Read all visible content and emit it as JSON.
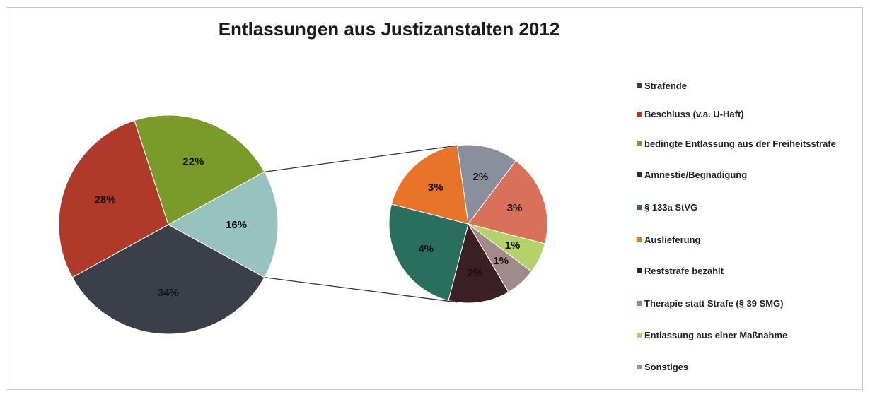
{
  "chart_data": {
    "type": "pie",
    "subtype": "pie-of-pie",
    "title": "Entlassungen aus Justizanstalten 2012",
    "legend_position": "right",
    "categories": [
      "Strafende",
      "Beschluss (v.a. U-Haft)",
      "bedingte Entlassung aus der Freiheitsstrafe",
      "Amnestie/Begnadigung",
      "§ 133a StVG",
      "Auslieferung",
      "Reststrafe bezahlt",
      "Therapie statt Strafe (§ 39 SMG)",
      "Entlassung aus einer Maßnahme",
      "Sonstiges"
    ],
    "main_pie": {
      "slices": [
        {
          "label": "34%",
          "value": 34,
          "color": "#3a3f4a"
        },
        {
          "label": "28%",
          "value": 28,
          "color": "#b03a2a"
        },
        {
          "label": "22%",
          "value": 22,
          "color": "#7a9a2a"
        },
        {
          "label": "16%",
          "value": 16,
          "color": "#97c2be"
        }
      ]
    },
    "secondary_pie": {
      "slices": [
        {
          "label": "2%",
          "value": 2,
          "color": "#8a8f9e"
        },
        {
          "label": "3%",
          "value": 3,
          "color": "#d9705a"
        },
        {
          "label": "1%",
          "value": 1,
          "color": "#b5d26a"
        },
        {
          "label": "1%",
          "value": 1,
          "color": "#a08a8a"
        },
        {
          "label": "2%",
          "value": 2,
          "color": "#3a1f24"
        },
        {
          "label": "4%",
          "value": 4,
          "color": "#2a6e5e"
        },
        {
          "label": "3%",
          "value": 3,
          "color": "#e8742a"
        }
      ]
    },
    "legend": [
      {
        "text": "Strafende",
        "color": "#3a3f4a"
      },
      {
        "text": "Beschluss (v.a. U-Haft)",
        "color": "#b03a2a"
      },
      {
        "text": "bedingte Entlassung aus der Freiheitsstrafe",
        "color": "#7a9a2a"
      },
      {
        "text": "Amnestie/Begnadigung",
        "color": "#2b2b3b"
      },
      {
        "text": "§ 133a StVG",
        "color": "#2a6e5e"
      },
      {
        "text": "Auslieferung",
        "color": "#e8742a"
      },
      {
        "text": "Reststrafe bezahlt",
        "color": "#3a1f24"
      },
      {
        "text": "Therapie statt Strafe (§ 39 SMG)",
        "color": "#d9705a"
      },
      {
        "text": "Entlassung aus einer Maßnahme",
        "color": "#b5d26a"
      },
      {
        "text": "Sonstiges",
        "color": "#a08a8a"
      }
    ]
  }
}
